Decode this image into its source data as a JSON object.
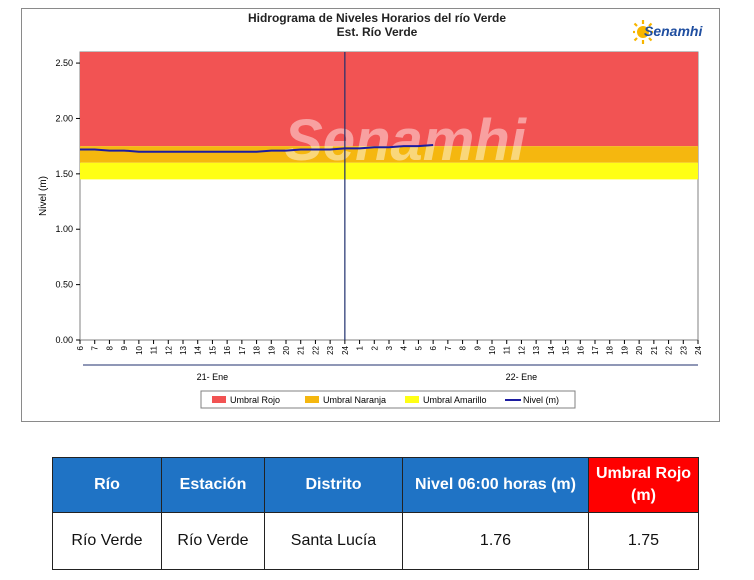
{
  "chart_data": {
    "type": "line",
    "title": "Hidrograma de Niveles Horarios del río Verde",
    "subtitle": "Est. Río Verde",
    "ylabel": "Nivel (m)",
    "ylim": [
      0,
      2.6
    ],
    "yticks": [
      "0.00",
      "0.50",
      "1.00",
      "1.50",
      "2.00",
      "2.50"
    ],
    "xticks": [
      "6",
      "7",
      "8",
      "9",
      "10",
      "11",
      "12",
      "13",
      "14",
      "15",
      "16",
      "17",
      "18",
      "19",
      "20",
      "21",
      "22",
      "23",
      "24",
      "1",
      "2",
      "3",
      "4",
      "5",
      "6",
      "7",
      "8",
      "9",
      "10",
      "11",
      "12",
      "13",
      "14",
      "15",
      "16",
      "17",
      "18",
      "19",
      "20",
      "21",
      "22",
      "23",
      "24"
    ],
    "day_labels": [
      "21- Ene",
      "22- Ene"
    ],
    "thresholds": [
      {
        "name": "Umbral Rojo",
        "from": 1.75,
        "to": 2.6,
        "color": "#f25353"
      },
      {
        "name": "Umbral Naranja",
        "from": 1.6,
        "to": 1.75,
        "color": "#f5b70f"
      },
      {
        "name": "Umbral Amarillo",
        "from": 1.45,
        "to": 1.6,
        "color": "#ffff14"
      }
    ],
    "series": [
      {
        "name": "Nivel (m)",
        "color": "#1c1ca0",
        "values": [
          1.72,
          1.72,
          1.71,
          1.71,
          1.7,
          1.7,
          1.7,
          1.7,
          1.7,
          1.7,
          1.7,
          1.7,
          1.7,
          1.71,
          1.71,
          1.72,
          1.72,
          1.72,
          1.73,
          1.73,
          1.74,
          1.74,
          1.75,
          1.75,
          1.76
        ]
      }
    ],
    "legend": [
      "Umbral Rojo",
      "Umbral Naranja",
      "Umbral Amarillo",
      "Nivel (m)"
    ],
    "watermark": "Senamhi",
    "legend_position": "bottom",
    "current_marker": "24"
  },
  "brand": {
    "name": "Senamhi"
  },
  "table": {
    "headers": [
      "Río",
      "Estación",
      "Distrito",
      "Nivel  06:00 horas (m)",
      "Umbral Rojo (m)"
    ],
    "row": [
      "Río Verde",
      "Río Verde",
      "Santa Lucía",
      "1.76",
      "1.75"
    ]
  }
}
